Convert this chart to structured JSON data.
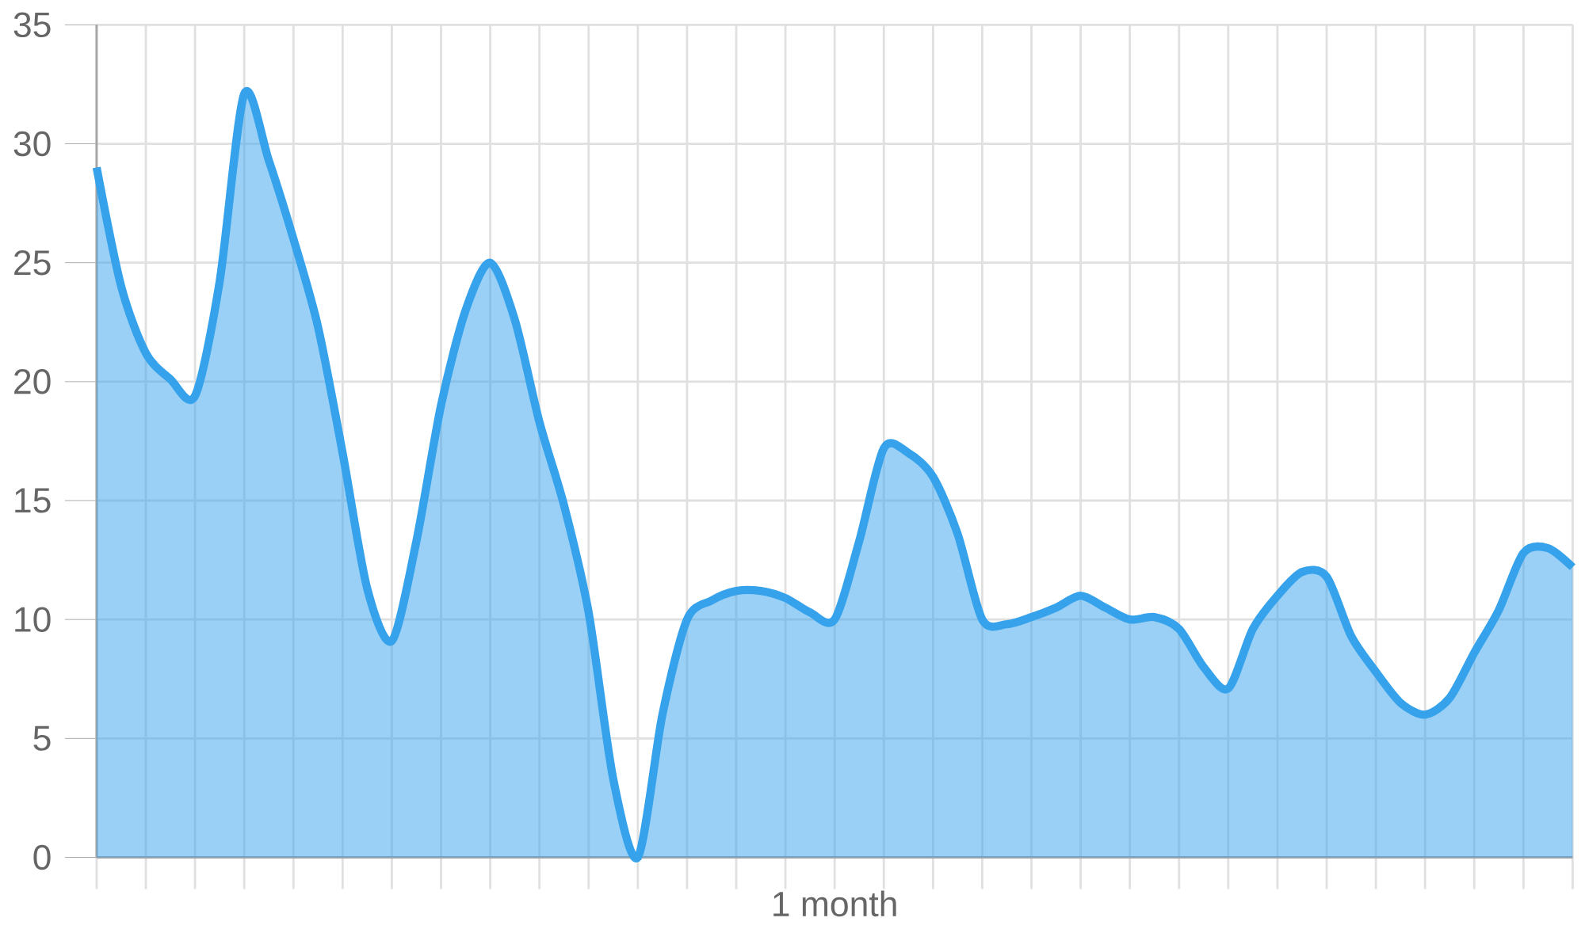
{
  "chart_data": {
    "type": "area",
    "xlabel": "1 month",
    "categories": [
      null,
      null,
      null,
      null,
      null,
      null,
      null,
      null,
      null,
      null,
      null,
      null,
      null,
      null,
      null,
      null,
      null,
      null,
      null,
      null,
      null,
      null,
      null,
      null,
      null,
      null,
      null,
      null,
      null,
      null,
      null,
      null,
      null,
      null,
      null,
      null,
      null,
      null,
      null,
      null,
      null,
      null,
      null,
      null,
      null,
      null,
      null,
      null,
      null,
      null,
      null,
      null,
      null,
      null,
      null,
      null,
      null,
      null,
      null,
      null,
      null
    ],
    "values": [
      29.0,
      24.0,
      21.2,
      20.1,
      19.4,
      24.2,
      32.1,
      29.3,
      26.0,
      22.3,
      17.0,
      11.3,
      9.1,
      13.3,
      19.0,
      23.0,
      25.0,
      22.6,
      18.3,
      14.8,
      10.3,
      3.3,
      0,
      6.0,
      10.0,
      10.8,
      11.2,
      11.2,
      10.9,
      10.3,
      10.0,
      13.3,
      17.2,
      17.0,
      16.0,
      13.6,
      10.0,
      9.8,
      10.1,
      10.5,
      11.0,
      10.5,
      10.0,
      10.1,
      9.6,
      8.0,
      7.1,
      9.6,
      11.0,
      12.0,
      11.8,
      9.3,
      7.8,
      6.5,
      6.0,
      6.7,
      8.6,
      10.4,
      12.8,
      13.0,
      12.2
    ],
    "color": "#36a2eb",
    "ylim": [
      0,
      35
    ],
    "yticks": [
      0,
      5,
      10,
      15,
      20,
      25,
      30,
      35
    ],
    "grid": true
  }
}
